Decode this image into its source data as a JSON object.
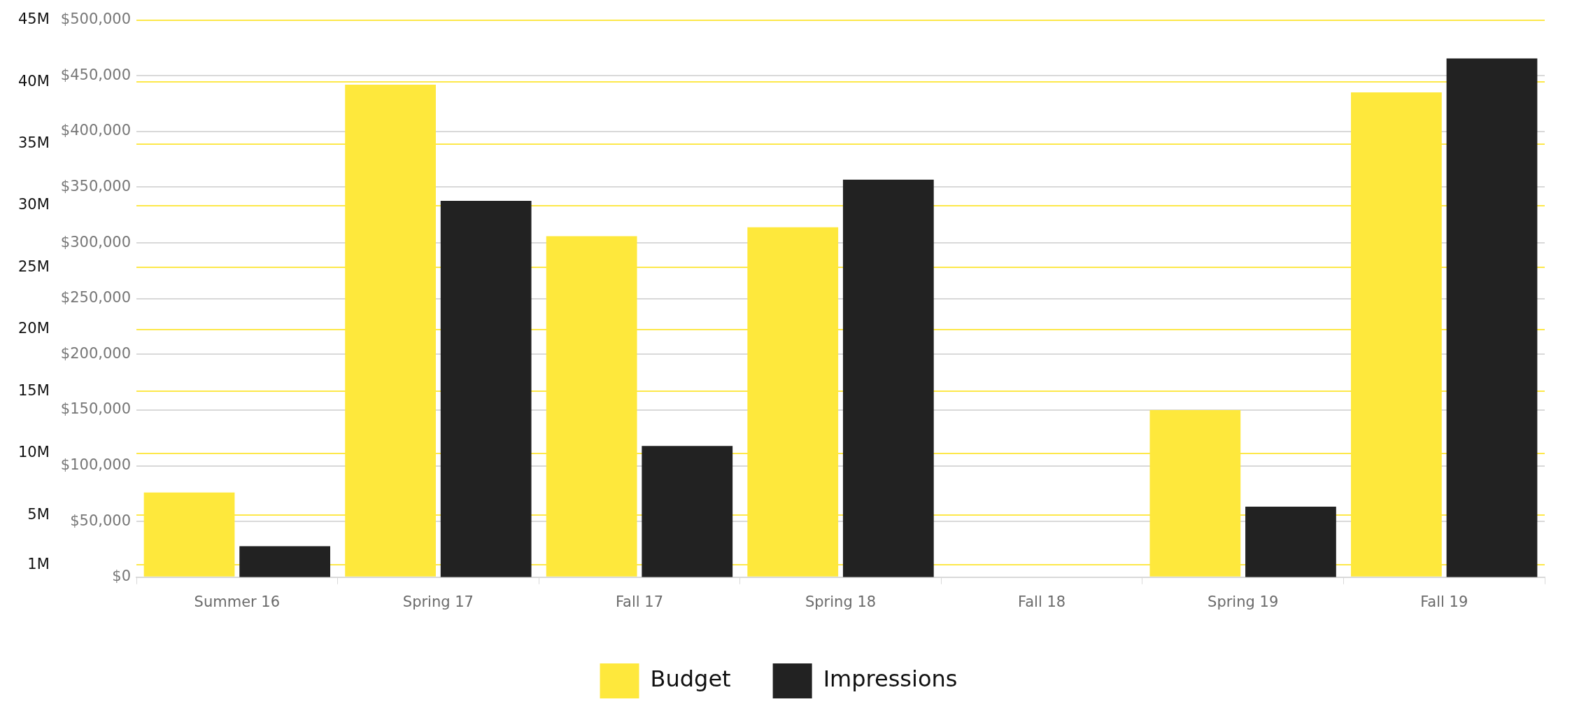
{
  "chart_data": {
    "type": "bar",
    "categories": [
      "Summer 16",
      "Spring 17",
      "Fall 17",
      "Spring 18",
      "Fall 18",
      "Spring 19",
      "Fall 19"
    ],
    "series": [
      {
        "name": "Budget",
        "color": "#fee83c",
        "values": [
          76000,
          442000,
          306000,
          314000,
          null,
          150000,
          435000
        ]
      },
      {
        "name": "Impressions",
        "color": "#222222",
        "axis": "y2",
        "values": [
          2.5,
          30.4,
          10.6,
          32.1,
          null,
          5.7,
          41.9
        ]
      }
    ],
    "ylim": [
      0,
      500000
    ],
    "yticks": [
      {
        "value": 0,
        "label": "$0"
      },
      {
        "value": 50000,
        "label": "$50,000"
      },
      {
        "value": 100000,
        "label": "$100,000"
      },
      {
        "value": 150000,
        "label": "$150,000"
      },
      {
        "value": 200000,
        "label": "$200,000"
      },
      {
        "value": 250000,
        "label": "$250,000"
      },
      {
        "value": 300000,
        "label": "$300,000"
      },
      {
        "value": 350000,
        "label": "$350,000"
      },
      {
        "value": 400000,
        "label": "$400,000"
      },
      {
        "value": 450000,
        "label": "$450,000"
      },
      {
        "value": 500000,
        "label": "$500,000"
      }
    ],
    "y2lim": [
      0,
      45
    ],
    "y2ticks": [
      {
        "value": 1,
        "label": "1M"
      },
      {
        "value": 5,
        "label": "5M"
      },
      {
        "value": 10,
        "label": "10M"
      },
      {
        "value": 15,
        "label": "15M"
      },
      {
        "value": 20,
        "label": "20M"
      },
      {
        "value": 25,
        "label": "25M"
      },
      {
        "value": 30,
        "label": "30M"
      },
      {
        "value": 35,
        "label": "35M"
      },
      {
        "value": 40,
        "label": "40M"
      },
      {
        "value": 45,
        "label": "45M"
      }
    ],
    "grid": true,
    "legend": "bottom"
  }
}
